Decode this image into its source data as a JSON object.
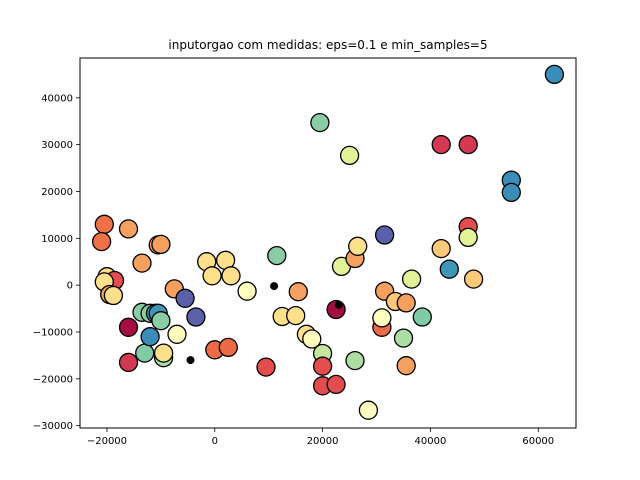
{
  "chart_data": {
    "type": "scatter",
    "title": "inputorgao com medidas: eps=0.1 e min_samples=5",
    "xlabel": "",
    "ylabel": "",
    "xlim": [
      -25000,
      67000
    ],
    "ylim": [
      -30500,
      48500
    ],
    "xticks": [
      -20000,
      0,
      20000,
      40000,
      60000
    ],
    "yticks": [
      -30000,
      -20000,
      -10000,
      0,
      10000,
      20000,
      30000,
      40000
    ],
    "grid": false,
    "legend": "none",
    "points": [
      {
        "x": -20500,
        "y": 13000,
        "color": "#f07047"
      },
      {
        "x": -21000,
        "y": 9300,
        "color": "#f07047"
      },
      {
        "x": -16000,
        "y": 12000,
        "color": "#f5a05f"
      },
      {
        "x": -20000,
        "y": 1800,
        "color": "#fee08b"
      },
      {
        "x": -18600,
        "y": 1000,
        "color": "#e34d4e"
      },
      {
        "x": -20500,
        "y": 700,
        "color": "#fee08b"
      },
      {
        "x": -19500,
        "y": -2000,
        "color": "#f5a05f"
      },
      {
        "x": -18800,
        "y": -2200,
        "color": "#fee08b"
      },
      {
        "x": -16000,
        "y": -9000,
        "color": "#a40d44"
      },
      {
        "x": -16000,
        "y": -16500,
        "color": "#d33a52"
      },
      {
        "x": -13500,
        "y": 4700,
        "color": "#f5a05f"
      },
      {
        "x": -10500,
        "y": 8600,
        "color": "#f5a05f"
      },
      {
        "x": -10000,
        "y": 8700,
        "color": "#f5a05f"
      },
      {
        "x": -13500,
        "y": -5800,
        "color": "#8acda4"
      },
      {
        "x": -13000,
        "y": -14500,
        "color": "#7fcba4"
      },
      {
        "x": -12000,
        "y": -6000,
        "color": "#8acda4"
      },
      {
        "x": -12000,
        "y": -11000,
        "color": "#3a8db8"
      },
      {
        "x": -11000,
        "y": -6000,
        "color": "#41a4b3"
      },
      {
        "x": -10500,
        "y": -6000,
        "color": "#3f96b7"
      },
      {
        "x": -10000,
        "y": -7600,
        "color": "#8acda4"
      },
      {
        "x": -9500,
        "y": -15500,
        "color": "#acdda2"
      },
      {
        "x": -9500,
        "y": -14500,
        "color": "#fee08b"
      },
      {
        "x": -7500,
        "y": -800,
        "color": "#f5a05f"
      },
      {
        "x": -7000,
        "y": -10500,
        "color": "#fffebe"
      },
      {
        "x": -5500,
        "y": -2800,
        "color": "#5b60aa"
      },
      {
        "x": -3500,
        "y": -6800,
        "color": "#5b60aa"
      },
      {
        "x": -1500,
        "y": 5000,
        "color": "#fee08b"
      },
      {
        "x": -500,
        "y": 2000,
        "color": "#fee08b"
      },
      {
        "x": 0,
        "y": -13800,
        "color": "#ed6a47"
      },
      {
        "x": 2000,
        "y": 5300,
        "color": "#fee08b"
      },
      {
        "x": 2500,
        "y": -13300,
        "color": "#ed6a47"
      },
      {
        "x": 3000,
        "y": 2000,
        "color": "#fee08b"
      },
      {
        "x": 6000,
        "y": -1300,
        "color": "#fffebe"
      },
      {
        "x": 9500,
        "y": -17500,
        "color": "#e34d4e"
      },
      {
        "x": 11500,
        "y": 6300,
        "color": "#8acda4"
      },
      {
        "x": 12500,
        "y": -6700,
        "color": "#fee08b"
      },
      {
        "x": 15000,
        "y": -6500,
        "color": "#fee08b"
      },
      {
        "x": 15500,
        "y": -1400,
        "color": "#f5a05f"
      },
      {
        "x": 17000,
        "y": -10500,
        "color": "#fee08b"
      },
      {
        "x": 18000,
        "y": -11500,
        "color": "#fffebe"
      },
      {
        "x": 19500,
        "y": 34700,
        "color": "#8acda4"
      },
      {
        "x": 20000,
        "y": -14600,
        "color": "#c5e79d"
      },
      {
        "x": 20000,
        "y": -17300,
        "color": "#e34d4e"
      },
      {
        "x": 20000,
        "y": -21500,
        "color": "#e34d4e"
      },
      {
        "x": 22500,
        "y": -21200,
        "color": "#e34d4e"
      },
      {
        "x": 22500,
        "y": -5200,
        "color": "#a40d44"
      },
      {
        "x": 23500,
        "y": 4000,
        "color": "#e2f397"
      },
      {
        "x": 25000,
        "y": 27700,
        "color": "#e2f397"
      },
      {
        "x": 26000,
        "y": 5700,
        "color": "#f5a05f"
      },
      {
        "x": 26500,
        "y": 8300,
        "color": "#fee08b"
      },
      {
        "x": 26000,
        "y": -16100,
        "color": "#acdda2"
      },
      {
        "x": 28500,
        "y": -26700,
        "color": "#fffebe"
      },
      {
        "x": 31000,
        "y": -9000,
        "color": "#ed6a47"
      },
      {
        "x": 31000,
        "y": -7000,
        "color": "#fffebe"
      },
      {
        "x": 31500,
        "y": -1300,
        "color": "#f5a05f"
      },
      {
        "x": 31500,
        "y": 10700,
        "color": "#5b60aa"
      },
      {
        "x": 33500,
        "y": -3500,
        "color": "#fdc877"
      },
      {
        "x": 35000,
        "y": -11300,
        "color": "#acdda2"
      },
      {
        "x": 35500,
        "y": -3800,
        "color": "#f5a05f"
      },
      {
        "x": 35500,
        "y": -17200,
        "color": "#f5a05f"
      },
      {
        "x": 36500,
        "y": 1300,
        "color": "#e2f397"
      },
      {
        "x": 38500,
        "y": -6800,
        "color": "#7fcba4"
      },
      {
        "x": 42000,
        "y": 30000,
        "color": "#d33a52"
      },
      {
        "x": 42000,
        "y": 7800,
        "color": "#fdc877"
      },
      {
        "x": 43500,
        "y": 3400,
        "color": "#3f96b7"
      },
      {
        "x": 47000,
        "y": 30000,
        "color": "#d33a52"
      },
      {
        "x": 47000,
        "y": 12500,
        "color": "#e34d4e"
      },
      {
        "x": 47000,
        "y": 10200,
        "color": "#e2f397"
      },
      {
        "x": 48000,
        "y": 1300,
        "color": "#fdc877"
      },
      {
        "x": 55000,
        "y": 22400,
        "color": "#3a8db8"
      },
      {
        "x": 55000,
        "y": 19800,
        "color": "#3a8db8"
      },
      {
        "x": 63000,
        "y": 45000,
        "color": "#3a8db8"
      }
    ],
    "noise_points": [
      {
        "x": 11000,
        "y": -200,
        "color": "#000000"
      },
      {
        "x": 23000,
        "y": -4200,
        "color": "#000000"
      },
      {
        "x": -4500,
        "y": -16000,
        "color": "#000000"
      }
    ]
  }
}
